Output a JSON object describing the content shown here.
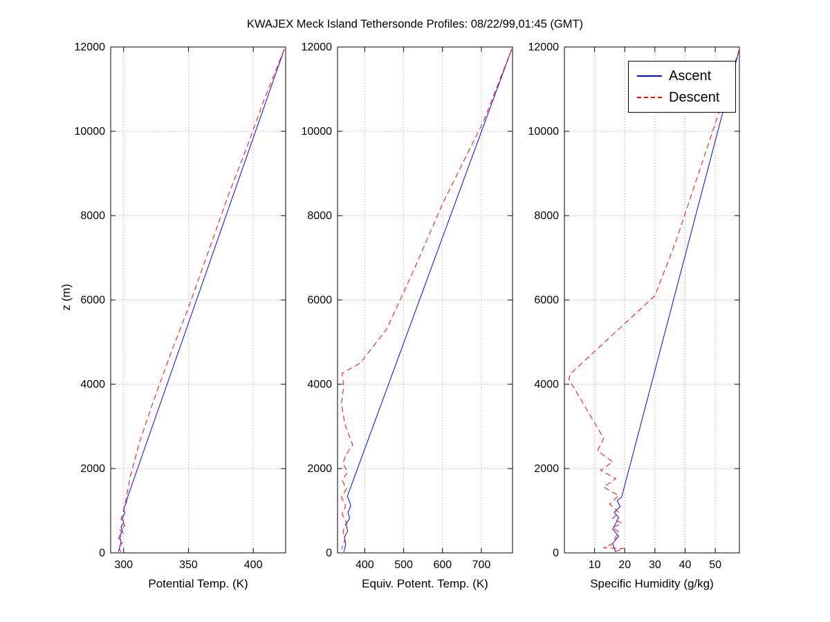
{
  "title": "KWAJEX Meck Island Tethersonde Profiles: 08/22/99,01:45 (GMT)",
  "ylabel": "z (m)",
  "colors": {
    "ascent": "#0000ff",
    "descent": "#ff0000",
    "grid": "#9a9a9a",
    "axis": "#000000",
    "background": "#ffffff"
  },
  "legend": {
    "entries": [
      {
        "label": "Ascent",
        "color": "#0000ff",
        "style": "solid"
      },
      {
        "label": "Descent",
        "color": "#ff0000",
        "style": "dashed"
      }
    ]
  },
  "chart_data": [
    {
      "type": "line",
      "xlabel": "Potential Temp. (K)",
      "xlim": [
        290,
        425
      ],
      "xticks": [
        300,
        350,
        400
      ],
      "ylim": [
        0,
        12000
      ],
      "yticks": [
        0,
        2000,
        4000,
        6000,
        8000,
        10000,
        12000
      ],
      "series": [
        {
          "name": "Ascent",
          "color": "#0000ff",
          "dash": false,
          "points": [
            [
              296,
              20
            ],
            [
              298,
              250
            ],
            [
              297,
              400
            ],
            [
              299,
              520
            ],
            [
              298,
              620
            ],
            [
              300,
              720
            ],
            [
              299,
              820
            ],
            [
              301,
              950
            ],
            [
              300,
              1050
            ],
            [
              302,
              1180
            ],
            [
              303,
              1320
            ],
            [
              424,
              11950
            ]
          ]
        },
        {
          "name": "Descent",
          "color": "#ff0000",
          "dash": true,
          "points": [
            [
              424,
              11950
            ],
            [
              409,
              10800
            ],
            [
              396,
              9700
            ],
            [
              381,
              8500
            ],
            [
              366,
              7200
            ],
            [
              351,
              5900
            ],
            [
              336,
              4700
            ],
            [
              323,
              3600
            ],
            [
              312,
              2600
            ],
            [
              305,
              1800
            ],
            [
              302,
              1300
            ],
            [
              300,
              1000
            ],
            [
              298,
              800
            ],
            [
              301,
              650
            ],
            [
              297,
              550
            ],
            [
              300,
              450
            ],
            [
              296,
              350
            ],
            [
              299,
              250
            ],
            [
              296,
              120
            ],
            [
              298,
              30
            ]
          ]
        }
      ]
    },
    {
      "type": "line",
      "xlabel": "Equiv. Potent. Temp. (K)",
      "xlim": [
        330,
        780
      ],
      "xticks": [
        400,
        500,
        600,
        700
      ],
      "ylim": [
        0,
        12000
      ],
      "yticks": [
        0,
        2000,
        4000,
        6000,
        8000,
        10000,
        12000
      ],
      "series": [
        {
          "name": "Ascent",
          "color": "#0000ff",
          "dash": false,
          "points": [
            [
              346,
              20
            ],
            [
              351,
              200
            ],
            [
              348,
              380
            ],
            [
              356,
              520
            ],
            [
              352,
              680
            ],
            [
              361,
              820
            ],
            [
              357,
              960
            ],
            [
              364,
              1120
            ],
            [
              359,
              1260
            ],
            [
              355,
              1340
            ],
            [
              778,
              11950
            ]
          ]
        },
        {
          "name": "Descent",
          "color": "#ff0000",
          "dash": true,
          "points": [
            [
              778,
              11950
            ],
            [
              706,
              10250
            ],
            [
              601,
              8300
            ],
            [
              521,
              6600
            ],
            [
              456,
              5300
            ],
            [
              388,
              4500
            ],
            [
              342,
              4260
            ],
            [
              346,
              3950
            ],
            [
              340,
              3550
            ],
            [
              349,
              3050
            ],
            [
              369,
              2560
            ],
            [
              351,
              2320
            ],
            [
              344,
              2120
            ],
            [
              356,
              1920
            ],
            [
              342,
              1720
            ],
            [
              353,
              1520
            ],
            [
              340,
              1320
            ],
            [
              351,
              1120
            ],
            [
              342,
              920
            ],
            [
              353,
              720
            ],
            [
              344,
              520
            ],
            [
              349,
              320
            ],
            [
              341,
              100
            ]
          ]
        }
      ]
    },
    {
      "type": "line",
      "xlabel": "Specific Humidity (g/kg)",
      "xlim": [
        0,
        58
      ],
      "xticks": [
        10,
        20,
        30,
        40,
        50
      ],
      "ylim": [
        0,
        12000
      ],
      "yticks": [
        0,
        2000,
        4000,
        6000,
        8000,
        10000,
        12000
      ],
      "series": [
        {
          "name": "Ascent",
          "color": "#0000ff",
          "dash": false,
          "points": [
            [
              17,
              20
            ],
            [
              16,
              220
            ],
            [
              18,
              400
            ],
            [
              16,
              560
            ],
            [
              17,
              700
            ],
            [
              18,
              840
            ],
            [
              16.5,
              960
            ],
            [
              18.5,
              1100
            ],
            [
              17.5,
              1240
            ],
            [
              19,
              1330
            ],
            [
              58,
              11950
            ]
          ]
        },
        {
          "name": "Descent",
          "color": "#ff0000",
          "dash": true,
          "points": [
            [
              58,
              11950
            ],
            [
              51,
              10400
            ],
            [
              44,
              8900
            ],
            [
              37,
              7400
            ],
            [
              30,
              6100
            ],
            [
              2,
              4250
            ],
            [
              1.5,
              4120
            ],
            [
              13,
              2720
            ],
            [
              11,
              2420
            ],
            [
              16,
              2160
            ],
            [
              12,
              1960
            ],
            [
              17,
              1760
            ],
            [
              13,
              1560
            ],
            [
              18,
              1360
            ],
            [
              15,
              1160
            ],
            [
              18,
              960
            ],
            [
              16,
              820
            ],
            [
              19,
              700
            ],
            [
              16,
              600
            ],
            [
              18,
              500
            ],
            [
              17,
              380
            ],
            [
              16,
              220
            ],
            [
              13,
              120
            ],
            [
              20,
              105
            ],
            [
              17,
              40
            ]
          ]
        }
      ]
    }
  ]
}
